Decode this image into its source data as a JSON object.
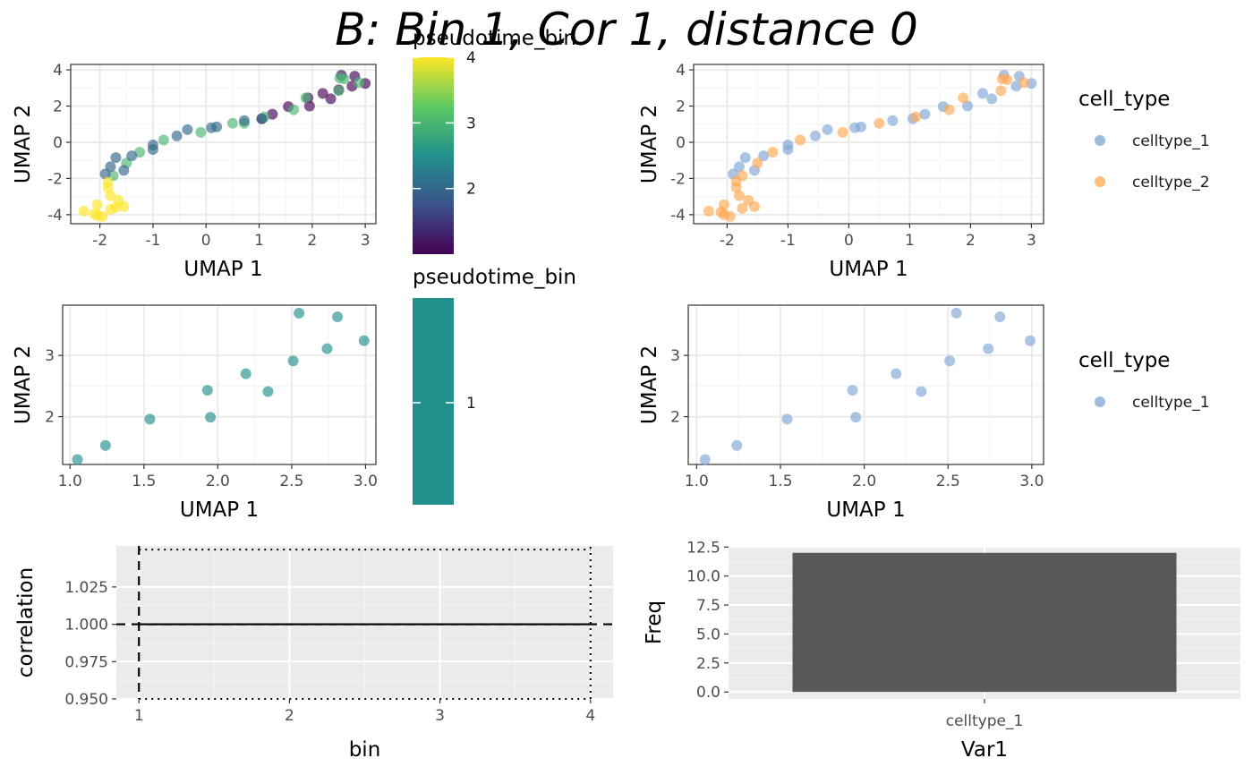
{
  "title": "B: Bin 1, Cor 1, distance 0",
  "colors": {
    "celltype_1": "#7FA6D5",
    "celltype_2": "#FFA850",
    "bar_fill": "#595959",
    "panel_gray": "#EBEBEB",
    "bin1_teal": "#21908C"
  },
  "chart_data": [
    {
      "id": "umap-pseudotime-all",
      "type": "scatter",
      "xlabel": "UMAP 1",
      "ylabel": "UMAP 2",
      "xlim": [
        -2.55,
        3.2
      ],
      "ylim": [
        -4.5,
        4.3
      ],
      "xticks": [
        -2,
        -1,
        0,
        1,
        2,
        3
      ],
      "yticks": [
        -4,
        -2,
        0,
        2,
        4
      ],
      "xtick_labels": [
        "-2",
        "-1",
        "0",
        "1",
        "2",
        "3"
      ],
      "ytick_labels": [
        "-4",
        "-2",
        "0",
        "2",
        "4"
      ],
      "grid": true,
      "color_by": "pseudotime_bin",
      "legend": {
        "title": "pseudotime_bin",
        "type": "colorbar",
        "range": [
          1,
          4
        ],
        "ticks": [
          2,
          3,
          4
        ],
        "tick_labels": [
          "2",
          "3",
          "4"
        ],
        "position": "right"
      },
      "points": [
        {
          "x": 2.55,
          "y": 3.7,
          "bin": 1
        },
        {
          "x": 2.8,
          "y": 3.65,
          "bin": 1
        },
        {
          "x": 2.75,
          "y": 3.1,
          "bin": 1
        },
        {
          "x": 3.0,
          "y": 3.25,
          "bin": 1
        },
        {
          "x": 2.5,
          "y": 2.9,
          "bin": 1
        },
        {
          "x": 2.2,
          "y": 2.7,
          "bin": 1
        },
        {
          "x": 2.35,
          "y": 2.4,
          "bin": 1
        },
        {
          "x": 1.92,
          "y": 2.45,
          "bin": 1
        },
        {
          "x": 1.95,
          "y": 2.0,
          "bin": 1
        },
        {
          "x": 1.55,
          "y": 1.97,
          "bin": 1
        },
        {
          "x": 1.25,
          "y": 1.55,
          "bin": 1
        },
        {
          "x": 1.05,
          "y": 1.3,
          "bin": 1
        },
        {
          "x": 2.52,
          "y": 3.55,
          "bin": 3
        },
        {
          "x": 2.6,
          "y": 3.5,
          "bin": 3
        },
        {
          "x": 2.88,
          "y": 3.3,
          "bin": 3
        },
        {
          "x": 2.5,
          "y": 2.85,
          "bin": 3
        },
        {
          "x": 1.88,
          "y": 2.45,
          "bin": 3
        },
        {
          "x": 1.65,
          "y": 1.8,
          "bin": 3
        },
        {
          "x": 1.1,
          "y": 1.4,
          "bin": 3
        },
        {
          "x": 0.5,
          "y": 1.05,
          "bin": 3
        },
        {
          "x": 0.72,
          "y": 1.05,
          "bin": 3
        },
        {
          "x": -0.1,
          "y": 0.55,
          "bin": 3
        },
        {
          "x": -0.8,
          "y": 0.12,
          "bin": 3
        },
        {
          "x": -1.25,
          "y": -0.55,
          "bin": 3
        },
        {
          "x": -1.5,
          "y": -1.15,
          "bin": 3
        },
        {
          "x": -1.75,
          "y": -1.85,
          "bin": 3
        },
        {
          "x": 1.05,
          "y": 1.3,
          "bin": 2
        },
        {
          "x": 0.72,
          "y": 1.2,
          "bin": 2
        },
        {
          "x": 0.2,
          "y": 0.85,
          "bin": 2
        },
        {
          "x": 0.1,
          "y": 0.8,
          "bin": 2
        },
        {
          "x": -0.35,
          "y": 0.7,
          "bin": 2
        },
        {
          "x": -0.55,
          "y": 0.35,
          "bin": 2
        },
        {
          "x": -1.0,
          "y": -0.15,
          "bin": 2
        },
        {
          "x": -1.0,
          "y": -0.4,
          "bin": 2
        },
        {
          "x": -1.4,
          "y": -0.75,
          "bin": 2
        },
        {
          "x": -1.7,
          "y": -0.85,
          "bin": 2
        },
        {
          "x": -1.8,
          "y": -1.35,
          "bin": 2
        },
        {
          "x": -1.55,
          "y": -1.55,
          "bin": 2
        },
        {
          "x": -1.9,
          "y": -1.75,
          "bin": 2
        },
        {
          "x": -2.3,
          "y": -3.8,
          "bin": 4
        },
        {
          "x": -2.1,
          "y": -3.95,
          "bin": 4
        },
        {
          "x": -2.05,
          "y": -4.05,
          "bin": 4
        },
        {
          "x": -1.95,
          "y": -4.1,
          "bin": 4
        },
        {
          "x": -1.8,
          "y": -3.7,
          "bin": 4
        },
        {
          "x": -1.7,
          "y": -3.6,
          "bin": 4
        },
        {
          "x": -1.55,
          "y": -3.55,
          "bin": 4
        },
        {
          "x": -1.8,
          "y": -2.95,
          "bin": 4
        },
        {
          "x": -1.65,
          "y": -3.2,
          "bin": 4
        },
        {
          "x": -1.85,
          "y": -2.5,
          "bin": 4
        },
        {
          "x": -1.85,
          "y": -2.2,
          "bin": 4
        },
        {
          "x": -2.05,
          "y": -3.45,
          "bin": 4
        }
      ]
    },
    {
      "id": "umap-celltype-all",
      "type": "scatter",
      "xlabel": "UMAP 1",
      "ylabel": "UMAP 2",
      "xlim": [
        -2.55,
        3.2
      ],
      "ylim": [
        -4.5,
        4.3
      ],
      "xticks": [
        -2,
        -1,
        0,
        1,
        2,
        3
      ],
      "yticks": [
        -4,
        -2,
        0,
        2,
        4
      ],
      "xtick_labels": [
        "-2",
        "-1",
        "0",
        "1",
        "2",
        "3"
      ],
      "ytick_labels": [
        "-4",
        "-2",
        "0",
        "2",
        "4"
      ],
      "grid": true,
      "color_by": "cell_type",
      "legend": {
        "title": "cell_type",
        "type": "points",
        "entries": [
          "celltype_1",
          "celltype_2"
        ],
        "position": "right"
      },
      "points": [
        {
          "x": 2.55,
          "y": 3.7,
          "group": "celltype_1"
        },
        {
          "x": 2.8,
          "y": 3.65,
          "group": "celltype_1"
        },
        {
          "x": 2.75,
          "y": 3.1,
          "group": "celltype_1"
        },
        {
          "x": 3.0,
          "y": 3.25,
          "group": "celltype_1"
        },
        {
          "x": 2.2,
          "y": 2.7,
          "group": "celltype_1"
        },
        {
          "x": 2.35,
          "y": 2.4,
          "group": "celltype_1"
        },
        {
          "x": 1.95,
          "y": 2.0,
          "group": "celltype_1"
        },
        {
          "x": 1.55,
          "y": 1.97,
          "group": "celltype_1"
        },
        {
          "x": 1.25,
          "y": 1.55,
          "group": "celltype_1"
        },
        {
          "x": 1.05,
          "y": 1.3,
          "group": "celltype_1"
        },
        {
          "x": 0.72,
          "y": 1.2,
          "group": "celltype_1"
        },
        {
          "x": 0.2,
          "y": 0.85,
          "group": "celltype_1"
        },
        {
          "x": 0.1,
          "y": 0.8,
          "group": "celltype_1"
        },
        {
          "x": -0.35,
          "y": 0.7,
          "group": "celltype_1"
        },
        {
          "x": -0.55,
          "y": 0.35,
          "group": "celltype_1"
        },
        {
          "x": -1.0,
          "y": -0.15,
          "group": "celltype_1"
        },
        {
          "x": -1.0,
          "y": -0.4,
          "group": "celltype_1"
        },
        {
          "x": -1.4,
          "y": -0.75,
          "group": "celltype_1"
        },
        {
          "x": -1.7,
          "y": -0.85,
          "group": "celltype_1"
        },
        {
          "x": -1.8,
          "y": -1.35,
          "group": "celltype_1"
        },
        {
          "x": -1.55,
          "y": -1.55,
          "group": "celltype_1"
        },
        {
          "x": -1.9,
          "y": -1.75,
          "group": "celltype_1"
        },
        {
          "x": 2.52,
          "y": 3.5,
          "group": "celltype_2"
        },
        {
          "x": 2.6,
          "y": 3.45,
          "group": "celltype_2"
        },
        {
          "x": 2.88,
          "y": 3.3,
          "group": "celltype_2"
        },
        {
          "x": 2.5,
          "y": 2.85,
          "group": "celltype_2"
        },
        {
          "x": 1.88,
          "y": 2.45,
          "group": "celltype_2"
        },
        {
          "x": 1.65,
          "y": 1.8,
          "group": "celltype_2"
        },
        {
          "x": 1.1,
          "y": 1.4,
          "group": "celltype_2"
        },
        {
          "x": 0.5,
          "y": 1.05,
          "group": "celltype_2"
        },
        {
          "x": -0.1,
          "y": 0.55,
          "group": "celltype_2"
        },
        {
          "x": -0.8,
          "y": 0.12,
          "group": "celltype_2"
        },
        {
          "x": -1.25,
          "y": -0.55,
          "group": "celltype_2"
        },
        {
          "x": -1.5,
          "y": -1.15,
          "group": "celltype_2"
        },
        {
          "x": -1.75,
          "y": -1.85,
          "group": "celltype_2"
        },
        {
          "x": -1.85,
          "y": -2.15,
          "group": "celltype_2"
        },
        {
          "x": -1.85,
          "y": -2.5,
          "group": "celltype_2"
        },
        {
          "x": -1.8,
          "y": -2.95,
          "group": "celltype_2"
        },
        {
          "x": -1.65,
          "y": -3.2,
          "group": "celltype_2"
        },
        {
          "x": -1.55,
          "y": -3.55,
          "group": "celltype_2"
        },
        {
          "x": -1.75,
          "y": -3.65,
          "group": "celltype_2"
        },
        {
          "x": -1.95,
          "y": -4.1,
          "group": "celltype_2"
        },
        {
          "x": -2.05,
          "y": -4.0,
          "group": "celltype_2"
        },
        {
          "x": -2.1,
          "y": -3.85,
          "group": "celltype_2"
        },
        {
          "x": -2.3,
          "y": -3.8,
          "group": "celltype_2"
        },
        {
          "x": -2.05,
          "y": -3.45,
          "group": "celltype_2"
        }
      ]
    },
    {
      "id": "umap-pseudotime-bin1",
      "type": "scatter",
      "xlabel": "UMAP 1",
      "ylabel": "UMAP 2",
      "xlim": [
        0.95,
        3.07
      ],
      "ylim": [
        1.22,
        3.82
      ],
      "xticks": [
        1.0,
        1.5,
        2.0,
        2.5,
        3.0
      ],
      "yticks": [
        2,
        3
      ],
      "xtick_labels": [
        "1.0",
        "1.5",
        "2.0",
        "2.5",
        "3.0"
      ],
      "ytick_labels": [
        "2",
        "3"
      ],
      "grid": true,
      "color_by": "pseudotime_bin",
      "legend": {
        "title": "pseudotime_bin",
        "type": "colorbar",
        "ticks": [
          1
        ],
        "tick_labels": [
          "1"
        ],
        "position": "right"
      },
      "points": [
        {
          "x": 1.05,
          "y": 1.3
        },
        {
          "x": 1.24,
          "y": 1.53
        },
        {
          "x": 1.54,
          "y": 1.96
        },
        {
          "x": 1.93,
          "y": 2.43
        },
        {
          "x": 1.95,
          "y": 1.99
        },
        {
          "x": 2.19,
          "y": 2.7
        },
        {
          "x": 2.34,
          "y": 2.41
        },
        {
          "x": 2.51,
          "y": 2.91
        },
        {
          "x": 2.55,
          "y": 3.69
        },
        {
          "x": 2.74,
          "y": 3.11
        },
        {
          "x": 2.81,
          "y": 3.63
        },
        {
          "x": 2.99,
          "y": 3.24
        }
      ]
    },
    {
      "id": "umap-celltype-bin1",
      "type": "scatter",
      "xlabel": "UMAP 1",
      "ylabel": "UMAP 2",
      "xlim": [
        0.95,
        3.07
      ],
      "ylim": [
        1.22,
        3.82
      ],
      "xticks": [
        1.0,
        1.5,
        2.0,
        2.5,
        3.0
      ],
      "yticks": [
        2,
        3
      ],
      "xtick_labels": [
        "1.0",
        "1.5",
        "2.0",
        "2.5",
        "3.0"
      ],
      "ytick_labels": [
        "2",
        "3"
      ],
      "grid": true,
      "color_by": "cell_type",
      "legend": {
        "title": "cell_type",
        "type": "points",
        "entries": [
          "celltype_1"
        ],
        "position": "right"
      },
      "points": [
        {
          "x": 1.05,
          "y": 1.3
        },
        {
          "x": 1.24,
          "y": 1.53
        },
        {
          "x": 1.54,
          "y": 1.96
        },
        {
          "x": 1.93,
          "y": 2.43
        },
        {
          "x": 1.95,
          "y": 1.99
        },
        {
          "x": 2.19,
          "y": 2.7
        },
        {
          "x": 2.34,
          "y": 2.41
        },
        {
          "x": 2.51,
          "y": 2.91
        },
        {
          "x": 2.55,
          "y": 3.69
        },
        {
          "x": 2.74,
          "y": 3.11
        },
        {
          "x": 2.81,
          "y": 3.63
        },
        {
          "x": 2.99,
          "y": 3.24
        }
      ]
    },
    {
      "id": "correlation-by-bin",
      "type": "line",
      "xlabel": "bin",
      "ylabel": "correlation",
      "xlim": [
        0.85,
        4.15
      ],
      "ylim": [
        0.95,
        1.0525
      ],
      "xticks": [
        1,
        2,
        3,
        4
      ],
      "yticks": [
        0.95,
        0.975,
        1.0,
        1.025
      ],
      "xtick_labels": [
        "1",
        "2",
        "3",
        "4"
      ],
      "ytick_labels": [
        "0.950",
        "0.975",
        "1.000",
        "1.025"
      ],
      "grid": true,
      "series": [
        {
          "x": [
            1,
            2,
            3,
            4
          ],
          "values": [
            1.0,
            1.0,
            1.0,
            1.0
          ]
        }
      ],
      "reference_lines": {
        "hline_dashed": 1.0,
        "vline_dashed": 1,
        "hlines_dotted": [
          0.95,
          1.05
        ],
        "vline_dotted": 4,
        "dotted_range_x": [
          1,
          4
        ]
      }
    },
    {
      "id": "celltype-frequency",
      "type": "bar",
      "xlabel": "Var1",
      "ylabel": "Freq",
      "categories": [
        "celltype_1"
      ],
      "values": [
        12
      ],
      "ylim": [
        -0.6,
        12.6
      ],
      "yticks": [
        0,
        2.5,
        5,
        7.5,
        10,
        12.5
      ],
      "ytick_labels": [
        "0.0",
        "2.5",
        "5.0",
        "7.5",
        "10.0",
        "12.5"
      ],
      "grid": true
    }
  ]
}
